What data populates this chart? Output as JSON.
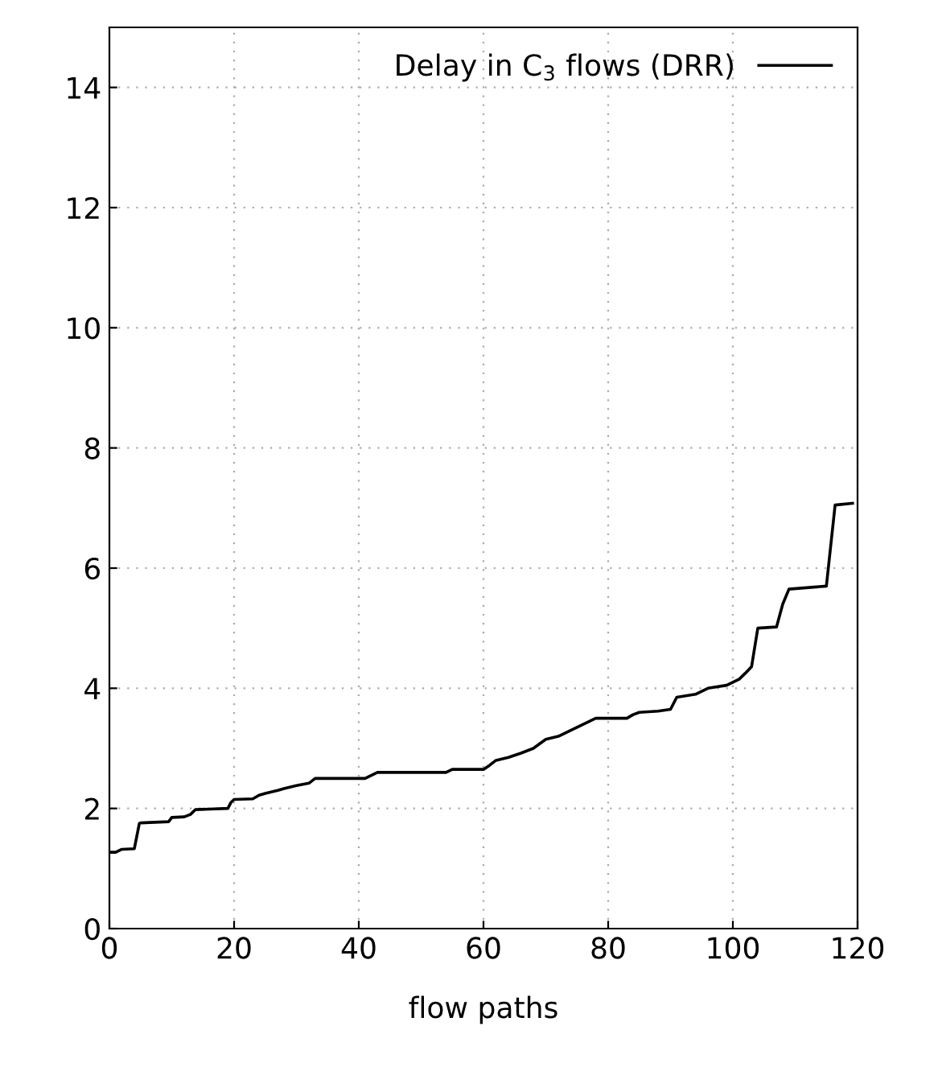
{
  "chart_data": {
    "type": "line",
    "xlabel": "flow paths",
    "legend": "top right",
    "grid": true,
    "series": [
      {
        "name": "Delay in C$_{3}$ flows (DRR)",
        "color": "#000000",
        "x": [
          0,
          1,
          2,
          4,
          4.8,
          5,
          9.5,
          10,
          12,
          13,
          13.8,
          19,
          19.5,
          20,
          23,
          24,
          25,
          27,
          28,
          30,
          32,
          33,
          41,
          43,
          54,
          55,
          60,
          61,
          62,
          64,
          66,
          68,
          70,
          72,
          74,
          75,
          77,
          78,
          83,
          84,
          85,
          88,
          90,
          91,
          94,
          96,
          99,
          100,
          101,
          102,
          103,
          104,
          107,
          108,
          109,
          115,
          116.4,
          119.2
        ],
        "values": [
          1.27,
          1.27,
          1.32,
          1.33,
          1.75,
          1.76,
          1.78,
          1.85,
          1.86,
          1.9,
          1.98,
          2.0,
          2.1,
          2.15,
          2.16,
          2.22,
          2.25,
          2.3,
          2.33,
          2.38,
          2.42,
          2.5,
          2.5,
          2.6,
          2.6,
          2.65,
          2.65,
          2.72,
          2.8,
          2.85,
          2.92,
          3.0,
          3.15,
          3.2,
          3.3,
          3.35,
          3.45,
          3.5,
          3.5,
          3.56,
          3.6,
          3.62,
          3.65,
          3.85,
          3.9,
          4.0,
          4.05,
          4.1,
          4.15,
          4.25,
          4.36,
          5.0,
          5.02,
          5.4,
          5.65,
          5.7,
          7.05,
          7.08
        ]
      }
    ],
    "xlim": [
      0,
      120
    ],
    "ylim": [
      0,
      15
    ],
    "xticks": [
      0,
      20,
      40,
      60,
      80,
      100,
      120
    ],
    "yticks": [
      0,
      2,
      4,
      6,
      8,
      10,
      12,
      14
    ]
  }
}
